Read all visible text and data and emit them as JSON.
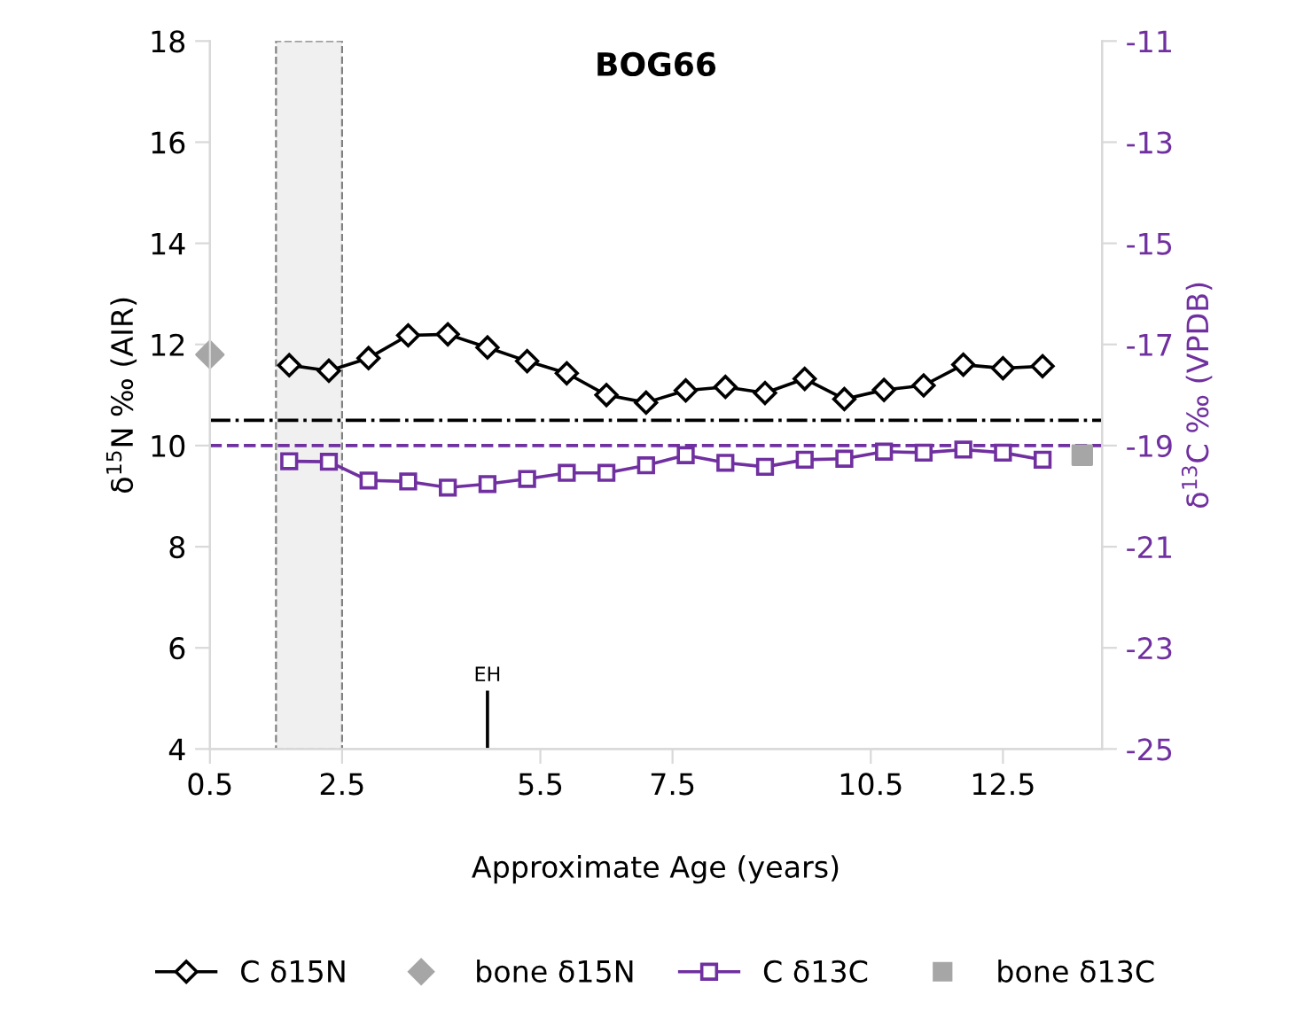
{
  "chart_data": {
    "type": "line",
    "title": "BOG66",
    "xlabel": "Approximate Age (years)",
    "ylabel": "δ$^{15}$N ‰ (AIR)",
    "y2label": "δ$^{13}$C ‰ (VPDB)",
    "xlim": [
      0.5,
      14
    ],
    "xticks": [
      0.5,
      2.5,
      5.5,
      7.5,
      10.5,
      12.5
    ],
    "ylim": [
      4,
      18
    ],
    "yticks": [
      4,
      6,
      8,
      10,
      12,
      14,
      16,
      18
    ],
    "y2lim": [
      -25,
      -11
    ],
    "y2ticks": [
      -25,
      -23,
      -21,
      -19,
      -17,
      -15,
      -13,
      -11
    ],
    "series": [
      {
        "name": "C δ15N",
        "color": "#000000",
        "marker": "diamond",
        "x": [
          1.7,
          2.3,
          2.9,
          3.5,
          4.1,
          4.7,
          5.3,
          5.9,
          6.5,
          7.1,
          7.7,
          8.3,
          8.9,
          9.5,
          10.1,
          10.7,
          11.3,
          11.9,
          12.5,
          13.1
        ],
        "values": [
          11.59,
          11.48,
          11.73,
          12.18,
          12.2,
          11.94,
          11.67,
          11.43,
          11.0,
          10.85,
          11.09,
          11.16,
          11.04,
          11.32,
          10.92,
          11.1,
          11.19,
          11.6,
          11.53,
          11.57
        ]
      },
      {
        "name": "bone δ15N",
        "type": "scatter",
        "color": "#a6a6a6",
        "marker": "diamond",
        "x": [
          0.5
        ],
        "values": [
          11.8
        ]
      },
      {
        "name": "C δ13C",
        "axis": "y2",
        "color": "#7030a0",
        "marker": "square",
        "x": [
          1.7,
          2.3,
          2.9,
          3.5,
          4.1,
          4.7,
          5.3,
          5.9,
          6.5,
          7.1,
          7.7,
          8.3,
          8.9,
          9.5,
          10.1,
          10.7,
          11.3,
          11.9,
          12.5,
          13.1
        ],
        "values": [
          -19.31,
          -19.32,
          -19.69,
          -19.71,
          -19.83,
          -19.76,
          -19.66,
          -19.54,
          -19.54,
          -19.39,
          -19.19,
          -19.34,
          -19.42,
          -19.28,
          -19.26,
          -19.12,
          -19.14,
          -19.08,
          -19.14,
          -19.28
        ]
      },
      {
        "name": "bone δ13C",
        "type": "scatter",
        "axis": "y2",
        "color": "#a6a6a6",
        "marker": "square",
        "x": [
          13.7
        ],
        "values": [
          -19.19
        ]
      }
    ],
    "ref_lines": [
      {
        "axis": "y",
        "value": 10.5,
        "color": "#000000",
        "line_style": "dashdot"
      },
      {
        "axis": "y2",
        "value": -19.0,
        "color": "#7030a0",
        "line_style": "dashed"
      },
      {
        "axis": "x",
        "value": 4.7,
        "label": "EH",
        "color": "#000000",
        "line_style": "solid"
      }
    ],
    "bands": [
      {
        "axis": "x",
        "from": 1.5,
        "to": 2.5,
        "color": "#808080"
      }
    ],
    "legend": "bottom",
    "grid": false
  }
}
